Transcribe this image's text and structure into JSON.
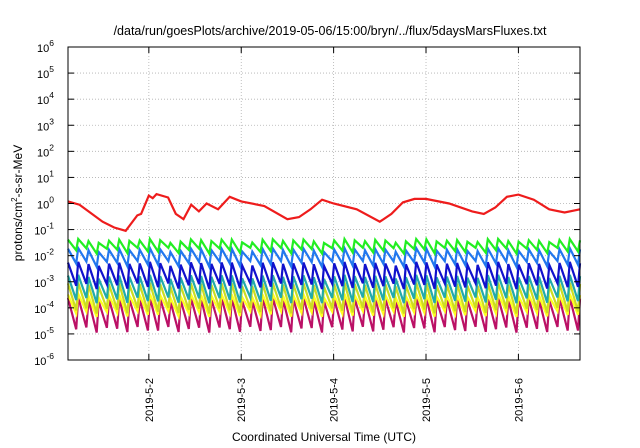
{
  "chart_data": {
    "type": "line",
    "title": "/data/run/goesPlots/archive/2019-05-06/15:00/bryn/../flux/5daysMarsFluxes.txt",
    "xlabel": "Coordinated Universal Time (UTC)",
    "ylabel": "protons/cm2-s-sr-MeV",
    "ylabel_parts": {
      "pre": "protons/cm",
      "sup": "2",
      "post": "-s-sr-MeV"
    },
    "yscale": "log",
    "ylim": [
      1e-06,
      1000000.0
    ],
    "y_ticks": [
      {
        "value": 1e-06,
        "base": "10",
        "exp": "-6"
      },
      {
        "value": 1e-05,
        "base": "10",
        "exp": "-5"
      },
      {
        "value": 0.0001,
        "base": "10",
        "exp": "-4"
      },
      {
        "value": 0.001,
        "base": "10",
        "exp": "-3"
      },
      {
        "value": 0.01,
        "base": "10",
        "exp": "-2"
      },
      {
        "value": 0.1,
        "base": "10",
        "exp": "-1"
      },
      {
        "value": 1,
        "base": "10",
        "exp": "0"
      },
      {
        "value": 10,
        "base": "10",
        "exp": "1"
      },
      {
        "value": 100,
        "base": "10",
        "exp": "2"
      },
      {
        "value": 1000,
        "base": "10",
        "exp": "3"
      },
      {
        "value": 10000,
        "base": "10",
        "exp": "4"
      },
      {
        "value": 100000,
        "base": "10",
        "exp": "5"
      },
      {
        "value": 1000000,
        "base": "10",
        "exp": "6"
      }
    ],
    "xlim": [
      "2019-05-01 03:00",
      "2019-05-06 16:00"
    ],
    "x_ticks": [
      {
        "value": "2019-05-02 00:00",
        "label": "2019-5-2"
      },
      {
        "value": "2019-05-03 00:00",
        "label": "2019-5-3"
      },
      {
        "value": "2019-05-04 00:00",
        "label": "2019-5-4"
      },
      {
        "value": "2019-05-05 00:00",
        "label": "2019-5-5"
      },
      {
        "value": "2019-05-06 00:00",
        "label": "2019-5-6"
      }
    ],
    "grid": true,
    "sawtooth_cycles": 50,
    "series": [
      {
        "color": "#ee1c1c",
        "x": [
          "2019-05-01 03:00",
          "2019-05-01 06:00",
          "2019-05-01 12:00",
          "2019-05-01 15:00",
          "2019-05-01 18:00",
          "2019-05-01 21:00",
          "2019-05-01 22:00",
          "2019-05-02 00:00",
          "2019-05-02 01:00",
          "2019-05-02 02:00",
          "2019-05-02 05:00",
          "2019-05-02 07:00",
          "2019-05-02 09:00",
          "2019-05-02 11:00",
          "2019-05-02 13:00",
          "2019-05-02 15:00",
          "2019-05-02 18:00",
          "2019-05-02 21:00",
          "2019-05-03 00:00",
          "2019-05-03 06:00",
          "2019-05-03 12:00",
          "2019-05-03 15:00",
          "2019-05-03 18:00",
          "2019-05-03 21:00",
          "2019-05-04 00:00",
          "2019-05-04 06:00",
          "2019-05-04 12:00",
          "2019-05-04 15:00",
          "2019-05-04 18:00",
          "2019-05-04 21:00",
          "2019-05-05 00:00",
          "2019-05-05 06:00",
          "2019-05-05 12:00",
          "2019-05-05 15:00",
          "2019-05-05 18:00",
          "2019-05-05 21:00",
          "2019-05-06 00:00",
          "2019-05-06 04:00",
          "2019-05-06 08:00",
          "2019-05-06 12:00",
          "2019-05-06 16:00"
        ],
        "y": [
          1.2,
          0.9,
          0.2,
          0.12,
          0.09,
          0.35,
          0.4,
          2.0,
          1.6,
          2.3,
          1.7,
          0.4,
          0.25,
          0.9,
          0.5,
          1.0,
          0.6,
          1.8,
          1.2,
          0.8,
          0.25,
          0.3,
          0.6,
          1.4,
          1.0,
          0.6,
          0.2,
          0.4,
          1.1,
          1.5,
          1.5,
          1.0,
          0.5,
          0.4,
          0.7,
          1.8,
          2.2,
          1.4,
          0.6,
          0.45,
          0.6
        ]
      },
      {
        "color": "#22ee22",
        "y_min": 0.016,
        "y_max": 0.038
      },
      {
        "color": "#2277ee",
        "y_min": 0.005,
        "y_max": 0.017
      },
      {
        "color": "#1111cc",
        "y_min": 0.0007,
        "y_max": 0.005
      },
      {
        "color": "#22aaaa",
        "y_min": 0.0002,
        "y_max": 0.0016
      },
      {
        "color": "#ccdd22",
        "y_min": 8e-05,
        "y_max": 0.0008
      },
      {
        "color": "#ffff22",
        "y_min": 6e-05,
        "y_max": 0.0003
      },
      {
        "color": "#bb1166",
        "y_min": 1.5e-05,
        "y_max": 0.00022
      }
    ]
  }
}
